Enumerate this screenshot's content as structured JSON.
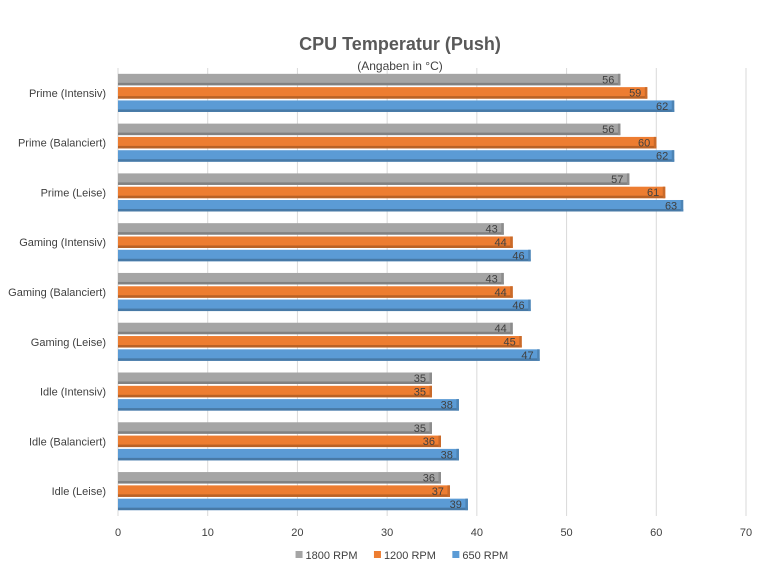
{
  "chart_data": {
    "type": "bar",
    "orientation": "horizontal",
    "title": "CPU Temperatur (Push)",
    "subtitle": "(Angaben in °C)",
    "xlabel": "",
    "ylabel": "",
    "xlim": [
      0,
      70
    ],
    "x_ticks": [
      "0",
      "10",
      "20",
      "30",
      "40",
      "50",
      "60",
      "70"
    ],
    "grid": "vertical",
    "legend_position": "bottom",
    "categories": [
      "Prime (Intensiv)",
      "Prime (Balanciert)",
      "Prime (Leise)",
      "Gaming (Intensiv)",
      "Gaming (Balanciert)",
      "Gaming (Leise)",
      "Idle (Intensiv)",
      "Idle (Balanciert)",
      "Idle (Leise)"
    ],
    "series": [
      {
        "name": "1800 RPM",
        "color": "#a5a5a5",
        "values": [
          56,
          56,
          57,
          43,
          43,
          44,
          35,
          35,
          36
        ]
      },
      {
        "name": "1200 RPM",
        "color": "#ed7d31",
        "values": [
          59,
          60,
          61,
          44,
          44,
          45,
          35,
          36,
          37
        ]
      },
      {
        "name": "650 RPM",
        "color": "#5b9bd5",
        "values": [
          62,
          62,
          63,
          46,
          46,
          47,
          38,
          38,
          39
        ]
      }
    ]
  }
}
